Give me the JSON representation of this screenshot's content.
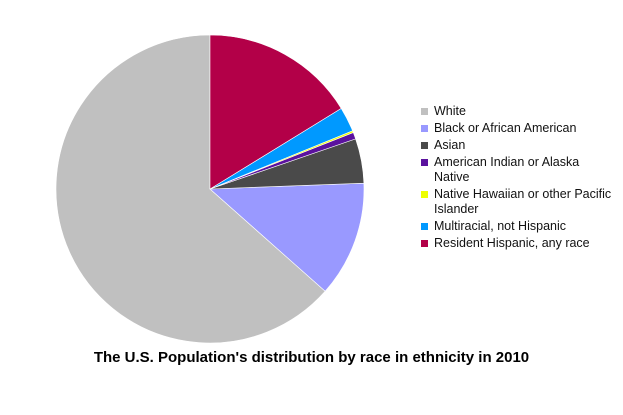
{
  "chart_data": {
    "type": "pie",
    "title": "The U.S. Population's distribution by race in ethnicity in 2010",
    "legend_position": "right",
    "series": [
      {
        "name": "White",
        "value": 63.7,
        "color": "#c0c0c0"
      },
      {
        "name": "Black or African American",
        "value": 12.2,
        "color": "#9999ff"
      },
      {
        "name": "Asian",
        "value": 4.7,
        "color": "#4a4a4a"
      },
      {
        "name": "American Indian or Alaska Native",
        "value": 0.7,
        "color": "#5b129e"
      },
      {
        "name": "Native Hawaiian or other Pacific Islander",
        "value": 0.2,
        "color": "#eeff00"
      },
      {
        "name": "Multiracial, not Hispanic",
        "value": 2.6,
        "color": "#0099ff"
      },
      {
        "name": "Resident Hispanic, any race",
        "value": 16.3,
        "color": "#b30048"
      }
    ]
  }
}
